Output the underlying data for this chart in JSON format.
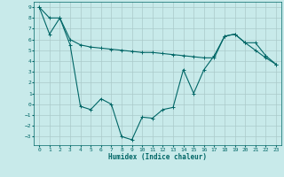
{
  "xlabel": "Humidex (Indice chaleur)",
  "background_color": "#c8eaea",
  "grid_color": "#aacaca",
  "line_color": "#006666",
  "xlim": [
    -0.5,
    23.5
  ],
  "ylim": [
    -3.8,
    9.5
  ],
  "yticks": [
    -3,
    -2,
    -1,
    0,
    1,
    2,
    3,
    4,
    5,
    6,
    7,
    8,
    9
  ],
  "xticks": [
    0,
    1,
    2,
    3,
    4,
    5,
    6,
    7,
    8,
    9,
    10,
    11,
    12,
    13,
    14,
    15,
    16,
    17,
    18,
    19,
    20,
    21,
    22,
    23
  ],
  "line1_x": [
    0,
    1,
    2,
    3,
    4,
    5,
    6,
    7,
    8,
    9,
    10,
    11,
    12,
    13,
    14,
    15,
    16,
    17,
    18,
    19,
    20,
    21,
    22,
    23
  ],
  "line1_y": [
    9,
    6.5,
    8.0,
    5.5,
    -0.2,
    -0.5,
    0.5,
    0.0,
    -3.0,
    -3.3,
    -1.2,
    -1.3,
    -0.5,
    -0.3,
    3.2,
    1.0,
    3.2,
    4.5,
    6.3,
    6.5,
    5.7,
    5.7,
    4.5,
    3.7
  ],
  "line2_x": [
    0,
    1,
    2,
    3,
    4,
    5,
    6,
    7,
    8,
    9,
    10,
    11,
    12,
    13,
    14,
    15,
    16,
    17,
    18,
    19,
    20,
    21,
    22,
    23
  ],
  "line2_y": [
    9,
    8.0,
    8.0,
    6.0,
    5.5,
    5.3,
    5.2,
    5.1,
    5.0,
    4.9,
    4.8,
    4.8,
    4.7,
    4.6,
    4.5,
    4.4,
    4.3,
    4.3,
    6.3,
    6.5,
    5.7,
    5.0,
    4.3,
    3.7
  ]
}
